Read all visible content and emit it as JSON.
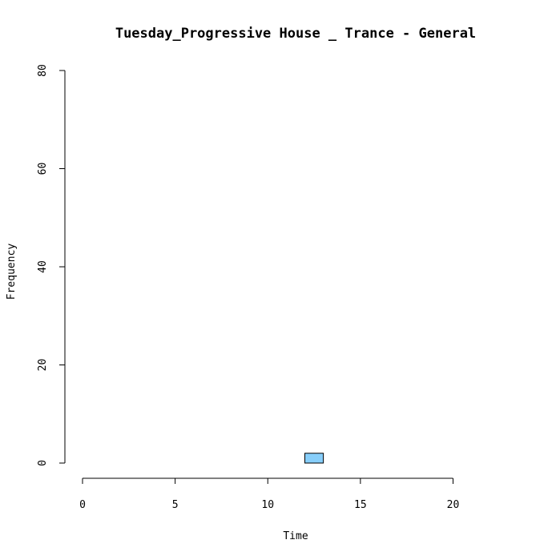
{
  "chart_data": {
    "type": "bar",
    "title": "Tuesday_Progressive House _ Trance - General",
    "xlabel": "Time",
    "ylabel": "Frequency",
    "xlim": [
      0,
      24
    ],
    "ylim": [
      0,
      80
    ],
    "x_ticks": [
      0,
      5,
      10,
      15,
      20
    ],
    "y_ticks": [
      0,
      20,
      40,
      60,
      80
    ],
    "bins": [
      {
        "start": 0,
        "end": 1,
        "value": 0
      },
      {
        "start": 1,
        "end": 2,
        "value": 0
      },
      {
        "start": 2,
        "end": 3,
        "value": 0
      },
      {
        "start": 3,
        "end": 4,
        "value": 0
      },
      {
        "start": 4,
        "end": 5,
        "value": 0
      },
      {
        "start": 5,
        "end": 6,
        "value": 0
      },
      {
        "start": 6,
        "end": 7,
        "value": 0
      },
      {
        "start": 7,
        "end": 8,
        "value": 0
      },
      {
        "start": 8,
        "end": 9,
        "value": 0
      },
      {
        "start": 9,
        "end": 10,
        "value": 0
      },
      {
        "start": 10,
        "end": 11,
        "value": 0
      },
      {
        "start": 11,
        "end": 12,
        "value": 0
      },
      {
        "start": 12,
        "end": 13,
        "value": 2
      },
      {
        "start": 13,
        "end": 14,
        "value": 0
      },
      {
        "start": 14,
        "end": 15,
        "value": 0
      },
      {
        "start": 15,
        "end": 16,
        "value": 0
      },
      {
        "start": 16,
        "end": 17,
        "value": 0
      },
      {
        "start": 17,
        "end": 18,
        "value": 0
      },
      {
        "start": 18,
        "end": 19,
        "value": 0
      },
      {
        "start": 19,
        "end": 20,
        "value": 0
      },
      {
        "start": 20,
        "end": 21,
        "value": 0
      },
      {
        "start": 21,
        "end": 22,
        "value": 0
      },
      {
        "start": 22,
        "end": 23,
        "value": 0
      },
      {
        "start": 23,
        "end": 24,
        "value": 0
      }
    ],
    "bar_color": "#87CEFA",
    "grid": false,
    "legend": "none"
  }
}
